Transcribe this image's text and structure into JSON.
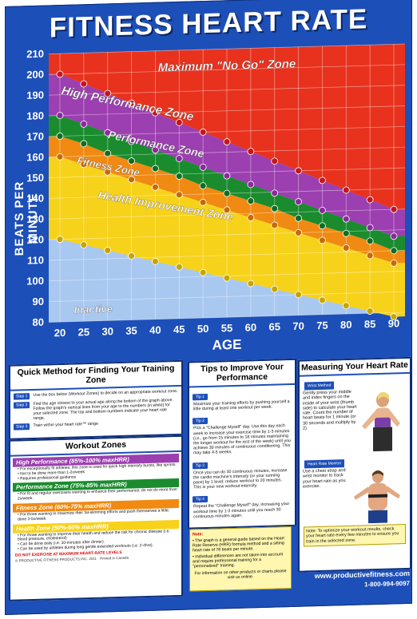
{
  "title": "FITNESS HEART RATE",
  "chart_data": {
    "type": "area",
    "ylabel": "BEATS PER MINUTE",
    "xlabel": "AGE",
    "ylim": [
      80,
      210
    ],
    "yticks": [
      80,
      90,
      100,
      110,
      120,
      130,
      140,
      150,
      160,
      170,
      180,
      190,
      200,
      210
    ],
    "x": [
      20,
      25,
      30,
      35,
      40,
      45,
      50,
      55,
      60,
      65,
      70,
      75,
      80,
      85,
      90
    ],
    "series": [
      {
        "name": "Maximum \"No Go\" Zone",
        "values": [
          210,
          210,
          210,
          210,
          210,
          210,
          210,
          210,
          210,
          210,
          210,
          210,
          210,
          210,
          210
        ],
        "color": "#e8321e"
      },
      {
        "name": "High Performance Zone",
        "values": [
          200,
          195,
          190,
          185,
          180,
          175,
          170,
          165,
          160,
          155,
          150,
          145,
          140,
          135,
          130
        ],
        "color": "#9c3fb0"
      },
      {
        "name": "Performance Zone",
        "values": [
          180,
          175.5,
          171,
          166.5,
          162,
          157.5,
          153,
          148.5,
          144,
          139.5,
          135,
          130.5,
          126,
          121.5,
          117
        ],
        "color": "#1a8c2e"
      },
      {
        "name": "Fitness Zone",
        "values": [
          170,
          166,
          161,
          157,
          153,
          149,
          144,
          140,
          136,
          132,
          127,
          123,
          119,
          115,
          110
        ],
        "color": "#f08a12"
      },
      {
        "name": "Health Improvement Zone",
        "values": [
          160,
          156,
          152,
          148,
          144,
          140,
          136,
          132,
          128,
          124,
          120,
          116,
          112,
          108,
          104
        ],
        "color": "#f7d21a"
      },
      {
        "name": "Inactive",
        "values": [
          120,
          117,
          114,
          111,
          108,
          105,
          102,
          99,
          96,
          93,
          90,
          87,
          84,
          81,
          78
        ],
        "color": "#a9c8f0"
      }
    ],
    "grid": true
  },
  "quick": {
    "title": "Quick Method for Finding Your Training Zone",
    "steps": [
      {
        "badge": "Step 1",
        "text": "Use the box below (Workout Zones) to decide on an appropriate workout zone."
      },
      {
        "badge": "Step 2",
        "text": "Find the age closest to your actual age along the bottom of the graph above. Follow the graph's vertical lines from your age to the numbers (in white) for your selected zone. The top and bottom numbers indicate your heart rate range."
      },
      {
        "badge": "Step 3",
        "text": "Train within your heart rate™ range"
      }
    ]
  },
  "zones": {
    "title": "Workout Zones",
    "items": [
      {
        "label": "High Performance (85%-100% maxHRR)",
        "color": "#9c3fb0",
        "bullets": [
          "For exceptionally fit athletes, this zone is used for quick high intensity bursts, like sprints.",
          "Not to be done more than 1-2x/week",
          "Requires professional guidance"
        ]
      },
      {
        "label": "Performance Zone (75%-85% maxHRR)",
        "color": "#1a8c2e",
        "bullets": [
          "For fit and regular exercisers wanting to enhance their performance, do not do more than 2x/week."
        ]
      },
      {
        "label": "Fitness Zone (60%-75% maxHRR)",
        "color": "#f08a12",
        "bullets": [
          "For those wanting to maximize their fat-slimming efforts and push themselves a little; done 3-5x/week."
        ]
      },
      {
        "label": "Health Zone (50%-60% maxHRR)",
        "color": "#f7d21a",
        "bullets": [
          "For those wanting to improve their health and reduce the risk for chronic disease (i.e. blood pressure, cholesterol)",
          "Can be done daily (i.e. 30-minutes after dinner).",
          "Can be used by athletes during long gentle extended workouts (i.e. 2-4hrs)."
        ]
      }
    ],
    "warning": "DO NOT EXERCISE AT MAXIMUM HEART-RATE LEVELS",
    "copyright": "© PRODUCTIVE FITNESS PRODUCTS INC. 2011 · Printed in Canada"
  },
  "tips": {
    "title": "Tips to Improve Your Performance",
    "items": [
      {
        "badge": "Tip 1",
        "text": "Maximize your training efforts by pushing yourself a little during at least one workout per week."
      },
      {
        "badge": "Tip 2",
        "text": "Pick a \"Challenge Myself\" day. Use this day each week to increase your exercise time by 1-3 minutes (i.e., go from 15 minutes to 18 minutes maintaining the longer workout for the rest of the week) until you achieve 30 minutes of continuous conditioning. This may take 4-5 weeks."
      },
      {
        "badge": "Tip 3",
        "text": "Once you can do 30 continuous minutes, increase the cardio machine's intensity (or your running pace) by 1 level; reduce workout to 20 minutes. This is your new workout intensity."
      },
      {
        "badge": "Tip 4",
        "text": "Repeat the \"Challenge Myself\" day, increasing your workout time by 1-3 minutes until you reach 30 continuous minutes again."
      }
    ]
  },
  "note": {
    "label": "Note:",
    "bullets": [
      "The graph is a general guide based on the Heart Rate Reserve (HRR) formula method and a sitting heart rate of 78 beats per minute.",
      "Individual differences are not taken into account and require professional training for a \"personalized\" training."
    ],
    "footer": "For information on other products or charts please visit us online."
  },
  "measure": {
    "title": "Measuring Your Heart Rate",
    "wrist_badge": "Wrist Method",
    "wrist_text": "Gently press your middle and index fingers on the inside of your wrist (thumb side) to calculate your heart rate. Count the number of heart beats for 1 minute (or 30 seconds and multiply by 2).",
    "monitor_badge": "Heart Rate Monitor",
    "monitor_text": "Use a chest strap and wrist monitor to track your heart rate as you exercise.",
    "note": "Note: To optimize your workout results, check your heart rate every few minutes to ensure you train in the selected zone."
  },
  "website": "www.productivefitness.com",
  "phone": "1-800-994-9097"
}
